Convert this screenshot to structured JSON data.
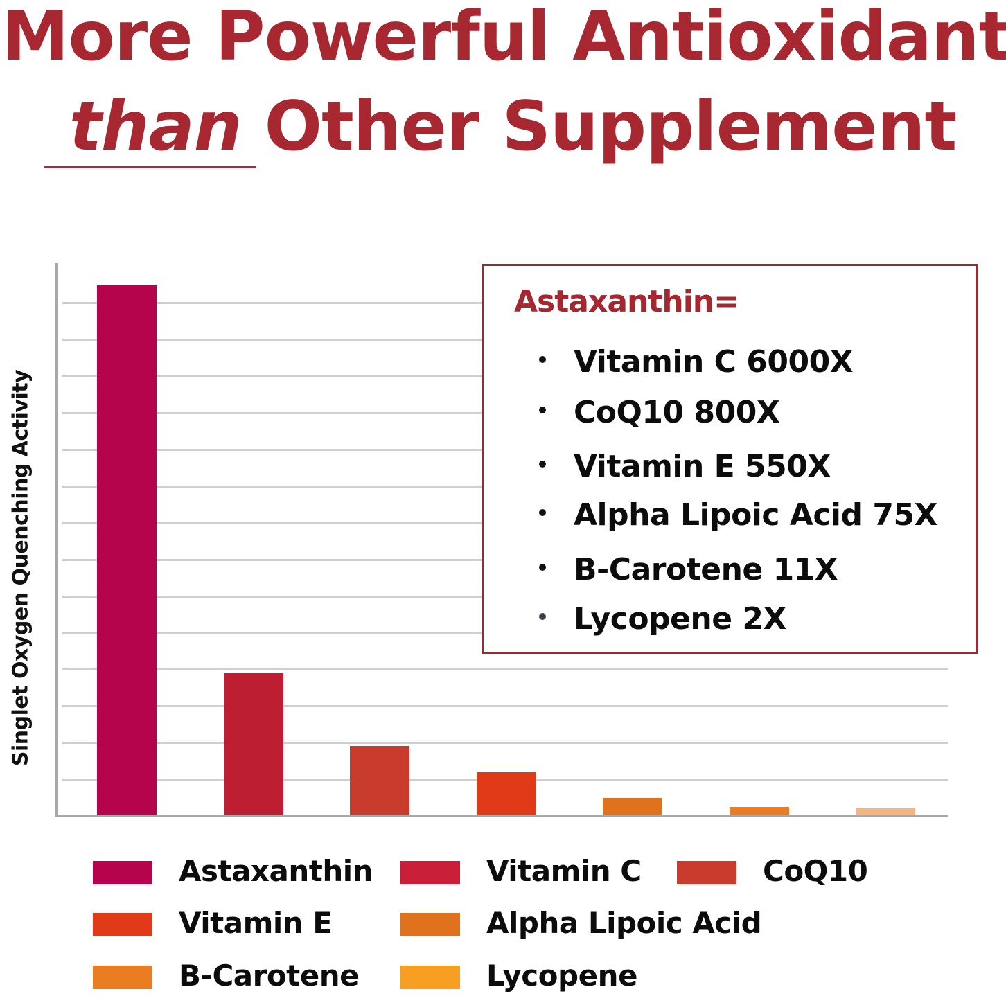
{
  "title": {
    "line1": "More Powerful Antioxidant",
    "line2_emphasis": "than",
    "line2_rest": " Other Supplement"
  },
  "colors": {
    "title": "#a82832",
    "grid": "#cfcfcf",
    "axis": "#a8a8a8",
    "inset_border": "#9d2a33"
  },
  "chart_data": {
    "type": "bar",
    "title": "More Powerful Antioxidant than Other Supplement",
    "xlabel": "",
    "ylabel": "Singlet Oxygen Quenching Activity",
    "categories": [
      "Astaxanthin",
      "Vitamin C",
      "CoQ10",
      "Vitamin E",
      "Alpha Lipoic Acid",
      "B-Carotene",
      "Lycopene"
    ],
    "values_units": "approximate bar height in gridline units (no numeric ticks shown)",
    "values": [
      14.5,
      3.9,
      1.9,
      1.2,
      0.5,
      0.25,
      0.2
    ],
    "colors": [
      "#b5044b",
      "#bd1e32",
      "#c93b2c",
      "#e03a18",
      "#e0711d",
      "#ea7d22",
      "#f8b47d"
    ],
    "ylim": [
      0,
      15
    ],
    "grid": true,
    "gridlines": 14,
    "y_tick_labels": [],
    "legend_position": "bottom",
    "legend": [
      {
        "label": "Astaxanthin",
        "color": "#b5044b"
      },
      {
        "label": "Vitamin C",
        "color": "#c91f38"
      },
      {
        "label": "CoQ10",
        "color": "#c93b2c"
      },
      {
        "label": "Vitamin E",
        "color": "#e03a18"
      },
      {
        "label": "Alpha Lipoic Acid",
        "color": "#e0711d"
      },
      {
        "label": "B-Carotene",
        "color": "#ea7d22"
      },
      {
        "label": "Lycopene",
        "color": "#f89e22"
      }
    ],
    "annotations": {
      "box_title": "Astaxanthin=",
      "items": [
        {
          "name": "Vitamin C",
          "multiplier": "6000X"
        },
        {
          "name": "CoQ10",
          "multiplier": "800X"
        },
        {
          "name": "Vitamin E",
          "multiplier": "550X"
        },
        {
          "name": "Alpha Lipoic Acid",
          "multiplier": "75X"
        },
        {
          "name": "B-Carotene",
          "multiplier": "11X"
        },
        {
          "name": "Lycopene",
          "multiplier": "2X"
        }
      ]
    }
  },
  "inset": {
    "title": "Astaxanthin=",
    "items": [
      "Vitamin C  6000X",
      "CoQ10  800X",
      "Vitamin E  550X",
      "Alpha Lipoic Acid  75X",
      "B-Carotene  11X",
      "Lycopene  2X"
    ]
  }
}
